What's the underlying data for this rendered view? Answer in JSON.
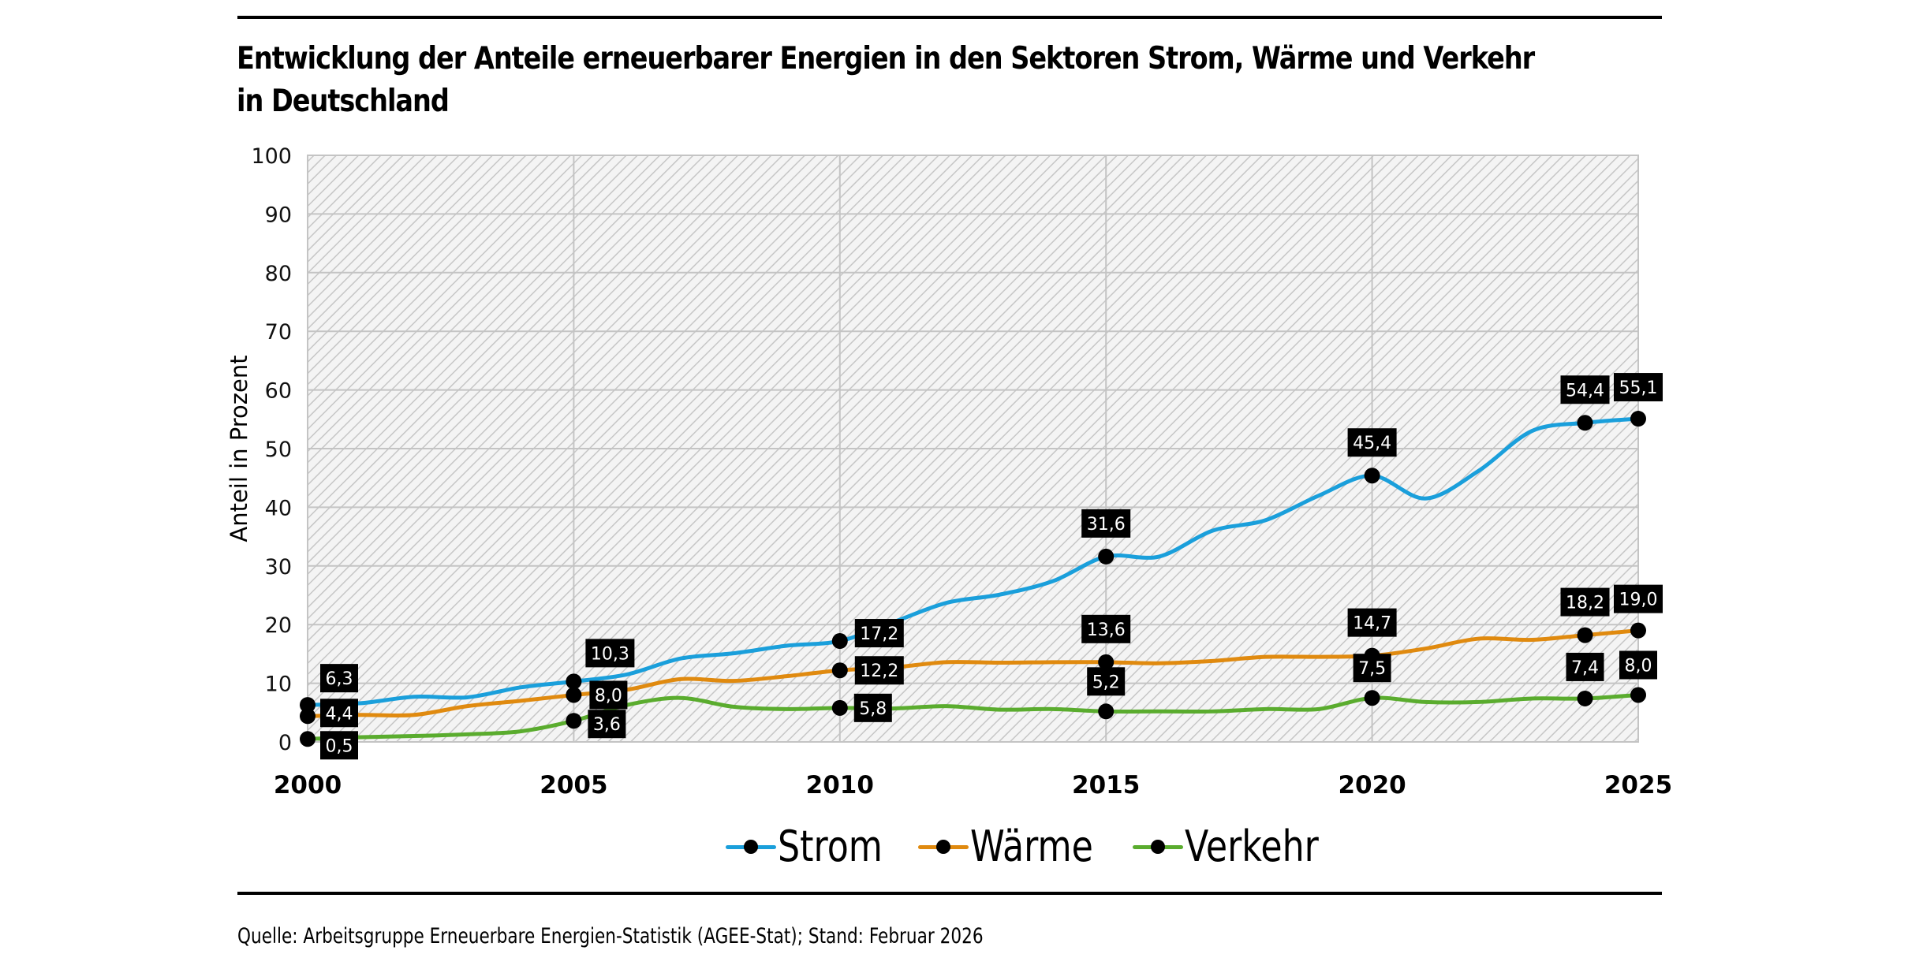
{
  "title_lines": [
    "Entwicklung der Anteile erneuerbarer Energien in den Sektoren Strom, Wärme und Verkehr",
    "in Deutschland"
  ],
  "footer": "Quelle: Arbeitsgruppe Erneuerbare Energien-Statistik (AGEE-Stat); Stand: Februar 2026",
  "chart_data": {
    "type": "line",
    "title": "Entwicklung der Anteile erneuerbarer Energien in den Sektoren Strom, Wärme und Verkehr in Deutschland",
    "xlabel": "",
    "ylabel": "Anteil in Prozent",
    "xlim": [
      2000,
      2025
    ],
    "ylim": [
      0,
      100
    ],
    "x_ticks": [
      2000,
      2005,
      2010,
      2015,
      2020,
      2025
    ],
    "x_tick_labels": [
      "2000",
      "2005",
      "2010",
      "2015",
      "2020",
      "2025"
    ],
    "y_ticks": [
      0,
      10,
      20,
      30,
      40,
      50,
      60,
      70,
      80,
      90,
      100
    ],
    "y_tick_labels": [
      "0",
      "10",
      "20",
      "30",
      "40",
      "50",
      "60",
      "70",
      "80",
      "90",
      "100"
    ],
    "grid": true,
    "legend_position": "bottom-center",
    "x": [
      2000,
      2001,
      2002,
      2003,
      2004,
      2005,
      2006,
      2007,
      2008,
      2009,
      2010,
      2011,
      2012,
      2013,
      2014,
      2015,
      2016,
      2017,
      2018,
      2019,
      2020,
      2021,
      2022,
      2023,
      2024,
      2025
    ],
    "series": [
      {
        "name": "Strom",
        "color": "#1a9fdb",
        "values": [
          6.3,
          6.6,
          7.7,
          7.6,
          9.3,
          10.3,
          11.5,
          14.2,
          15.1,
          16.4,
          17.2,
          20.4,
          23.7,
          25.1,
          27.4,
          31.6,
          31.6,
          36.0,
          37.8,
          42.0,
          45.4,
          41.5,
          46.2,
          53.0,
          54.4,
          55.1
        ],
        "labeled_points": [
          {
            "x": 2000,
            "label": "6,3"
          },
          {
            "x": 2005,
            "label": "10,3"
          },
          {
            "x": 2010,
            "label": "17,2"
          },
          {
            "x": 2015,
            "label": "31,6"
          },
          {
            "x": 2020,
            "label": "45,4"
          },
          {
            "x": 2024,
            "label": "54,4"
          },
          {
            "x": 2025,
            "label": "55,1"
          }
        ]
      },
      {
        "name": "Wärme",
        "color": "#e08a0f",
        "values": [
          4.4,
          4.6,
          4.6,
          6.1,
          7.0,
          8.0,
          8.9,
          10.7,
          10.4,
          11.2,
          12.2,
          12.7,
          13.6,
          13.5,
          13.6,
          13.6,
          13.4,
          13.8,
          14.5,
          14.5,
          14.7,
          15.9,
          17.6,
          17.4,
          18.2,
          19.0
        ],
        "labeled_points": [
          {
            "x": 2000,
            "label": "4,4"
          },
          {
            "x": 2005,
            "label": "8,0"
          },
          {
            "x": 2010,
            "label": "12,2"
          },
          {
            "x": 2015,
            "label": "13,6"
          },
          {
            "x": 2020,
            "label": "14,7"
          },
          {
            "x": 2024,
            "label": "18,2"
          },
          {
            "x": 2025,
            "label": "19,0"
          }
        ]
      },
      {
        "name": "Verkehr",
        "color": "#5aac2e",
        "values": [
          0.5,
          0.8,
          1.0,
          1.3,
          1.8,
          3.6,
          6.3,
          7.5,
          6.0,
          5.6,
          5.8,
          5.7,
          6.1,
          5.5,
          5.6,
          5.2,
          5.2,
          5.2,
          5.6,
          5.6,
          7.5,
          6.8,
          6.8,
          7.4,
          7.4,
          8.0
        ],
        "labeled_points": [
          {
            "x": 2000,
            "label": "0,5"
          },
          {
            "x": 2005,
            "label": "3,6"
          },
          {
            "x": 2010,
            "label": "5,8"
          },
          {
            "x": 2015,
            "label": "5,2"
          },
          {
            "x": 2020,
            "label": "7,5"
          },
          {
            "x": 2024,
            "label": "7,4"
          },
          {
            "x": 2025,
            "label": "8,0"
          }
        ]
      }
    ]
  }
}
